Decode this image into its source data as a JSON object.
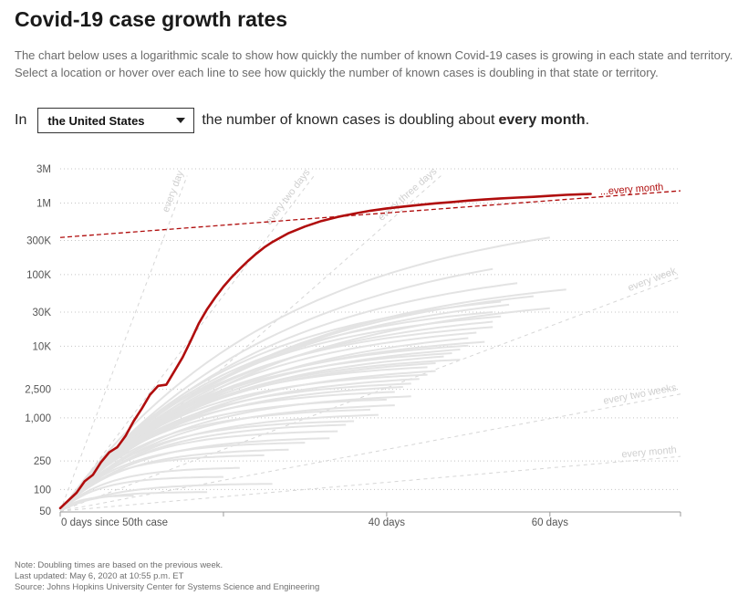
{
  "header": {
    "title": "Covid-19 case growth rates",
    "intro": "The chart below uses a logarithmic scale to show how quickly the number of known Covid-19 cases is growing in each state and territory. Select a location or hover over each line to see how quickly the number of known cases is doubling in that state or territory."
  },
  "selector": {
    "prefix": "In",
    "selected": "the United States",
    "middle": "the number of known cases is doubling about",
    "rate": "every month",
    "suffix": "."
  },
  "footer": {
    "note": "Note: Doubling times are based on the previous week.",
    "updated": "Last updated: May 6, 2020 at 10:55 p.m. ET",
    "source": "Source: Johns Hopkins University Center for Systems Science and Engineering"
  },
  "colors": {
    "highlight": "#b00d0d",
    "other_lines": "#e3e3e3",
    "reference": "#d6d6d6",
    "grid": "#c4c4c4"
  },
  "chart_data": {
    "type": "line",
    "scale_y": "log",
    "ylim": [
      50,
      3000000
    ],
    "xlim": [
      0,
      76
    ],
    "y_ticks": [
      {
        "value": 3000000,
        "label": "3M"
      },
      {
        "value": 1000000,
        "label": "1M"
      },
      {
        "value": 300000,
        "label": "300K"
      },
      {
        "value": 100000,
        "label": "100K"
      },
      {
        "value": 30000,
        "label": "30K"
      },
      {
        "value": 10000,
        "label": "10K"
      },
      {
        "value": 2500,
        "label": "2,500"
      },
      {
        "value": 1000,
        "label": "1,000"
      },
      {
        "value": 250,
        "label": "250"
      },
      {
        "value": 100,
        "label": "100"
      },
      {
        "value": 50,
        "label": "50"
      }
    ],
    "x_ticks": [
      {
        "value": 0,
        "label": "0 days since 50th case"
      },
      {
        "value": 20,
        "label": ""
      },
      {
        "value": 40,
        "label": "40 days"
      },
      {
        "value": 60,
        "label": "60 days"
      }
    ],
    "reference_lines": [
      {
        "label": "every day",
        "doubling_days": 1,
        "color": "#d6d6d6",
        "highlighted": false
      },
      {
        "label": "every two days",
        "doubling_days": 2,
        "color": "#d6d6d6",
        "highlighted": false
      },
      {
        "label": "every three days",
        "doubling_days": 3,
        "color": "#d6d6d6",
        "highlighted": false
      },
      {
        "label": "every week",
        "doubling_days": 7,
        "color": "#d6d6d6",
        "highlighted": false
      },
      {
        "label": "every two weeks",
        "doubling_days": 14,
        "color": "#d6d6d6",
        "highlighted": false
      },
      {
        "label": "every month",
        "doubling_days": 30,
        "color": "#d6d6d6",
        "highlighted": false
      },
      {
        "label": "...every month",
        "color": "#b00d0d",
        "highlighted": true,
        "points": [
          [
            0,
            330000
          ],
          [
            76,
            1480000
          ]
        ]
      }
    ],
    "highlight_series": {
      "name": "the United States",
      "color": "#b00d0d",
      "points": [
        [
          0,
          55
        ],
        [
          2,
          90
        ],
        [
          3,
          130
        ],
        [
          4,
          160
        ],
        [
          5,
          240
        ],
        [
          6,
          330
        ],
        [
          7,
          390
        ],
        [
          8,
          560
        ],
        [
          9,
          900
        ],
        [
          10,
          1350
        ],
        [
          11,
          2100
        ],
        [
          12,
          2800
        ],
        [
          13,
          2900
        ],
        [
          14,
          4500
        ],
        [
          15,
          7000
        ],
        [
          16,
          12000
        ],
        [
          17,
          21000
        ],
        [
          18,
          33000
        ],
        [
          19,
          48000
        ],
        [
          20,
          68000
        ],
        [
          21,
          92000
        ],
        [
          22,
          120000
        ],
        [
          23,
          155000
        ],
        [
          24,
          195000
        ],
        [
          25,
          240000
        ],
        [
          26,
          285000
        ],
        [
          27,
          330000
        ],
        [
          28,
          380000
        ],
        [
          30,
          470000
        ],
        [
          32,
          560000
        ],
        [
          34,
          640000
        ],
        [
          36,
          710000
        ],
        [
          38,
          780000
        ],
        [
          40,
          840000
        ],
        [
          42,
          890000
        ],
        [
          44,
          940000
        ],
        [
          46,
          990000
        ],
        [
          48,
          1030000
        ],
        [
          50,
          1080000
        ],
        [
          52,
          1120000
        ],
        [
          54,
          1160000
        ],
        [
          56,
          1190000
        ],
        [
          58,
          1220000
        ],
        [
          60,
          1260000
        ],
        [
          62,
          1300000
        ],
        [
          65,
          1340000
        ]
      ]
    },
    "background_series": [
      {
        "days": 60,
        "end": 330000,
        "shape": 2.2
      },
      {
        "days": 53,
        "end": 120000,
        "shape": 2.0
      },
      {
        "days": 62,
        "end": 62000,
        "shape": 2.5
      },
      {
        "days": 56,
        "end": 76000,
        "shape": 2.3
      },
      {
        "days": 58,
        "end": 50000,
        "shape": 2.4
      },
      {
        "days": 54,
        "end": 42000,
        "shape": 2.6
      },
      {
        "days": 55,
        "end": 38000,
        "shape": 2.4
      },
      {
        "days": 53,
        "end": 30000,
        "shape": 2.7
      },
      {
        "days": 60,
        "end": 34000,
        "shape": 2.5
      },
      {
        "days": 54,
        "end": 26000,
        "shape": 2.8
      },
      {
        "days": 53,
        "end": 22000,
        "shape": 2.6
      },
      {
        "days": 53,
        "end": 18500,
        "shape": 2.9
      },
      {
        "days": 51,
        "end": 15500,
        "shape": 2.7
      },
      {
        "days": 50,
        "end": 13000,
        "shape": 2.5
      },
      {
        "days": 52,
        "end": 11500,
        "shape": 2.9
      },
      {
        "days": 50,
        "end": 10200,
        "shape": 3.0
      },
      {
        "days": 49,
        "end": 9000,
        "shape": 2.8
      },
      {
        "days": 48,
        "end": 8000,
        "shape": 3.1
      },
      {
        "days": 47,
        "end": 7200,
        "shape": 2.8
      },
      {
        "days": 49,
        "end": 6500,
        "shape": 3.2
      },
      {
        "days": 46,
        "end": 5800,
        "shape": 3.0
      },
      {
        "days": 45,
        "end": 5100,
        "shape": 3.3
      },
      {
        "days": 46,
        "end": 4500,
        "shape": 3.0
      },
      {
        "days": 45,
        "end": 4000,
        "shape": 3.4
      },
      {
        "days": 44,
        "end": 3500,
        "shape": 3.1
      },
      {
        "days": 43,
        "end": 3000,
        "shape": 3.5
      },
      {
        "days": 42,
        "end": 2700,
        "shape": 3.2
      },
      {
        "days": 41,
        "end": 2300,
        "shape": 3.6
      },
      {
        "days": 43,
        "end": 2000,
        "shape": 3.3
      },
      {
        "days": 40,
        "end": 1800,
        "shape": 3.7
      },
      {
        "days": 41,
        "end": 1500,
        "shape": 3.4
      },
      {
        "days": 38,
        "end": 1300,
        "shape": 3.8
      },
      {
        "days": 39,
        "end": 1100,
        "shape": 3.5
      },
      {
        "days": 36,
        "end": 900,
        "shape": 3.9
      },
      {
        "days": 35,
        "end": 800,
        "shape": 3.6
      },
      {
        "days": 34,
        "end": 650,
        "shape": 4.0
      },
      {
        "days": 33,
        "end": 520,
        "shape": 3.7
      },
      {
        "days": 30,
        "end": 450,
        "shape": 4.1
      },
      {
        "days": 28,
        "end": 360,
        "shape": 3.8
      },
      {
        "days": 25,
        "end": 300,
        "shape": 4.2
      },
      {
        "days": 22,
        "end": 200,
        "shape": 3.9
      },
      {
        "days": 20,
        "end": 150,
        "shape": 4.3
      },
      {
        "days": 26,
        "end": 120,
        "shape": 4.0
      },
      {
        "days": 18,
        "end": 92,
        "shape": 4.4
      },
      {
        "days": 9,
        "end": 82,
        "shape": 4.0
      }
    ]
  }
}
